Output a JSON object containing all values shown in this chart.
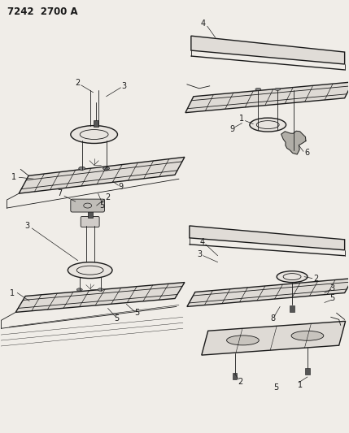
{
  "title": "7242  2700 A",
  "bg_color": "#f0ede8",
  "line_color": "#1a1a1a",
  "label_fontsize": 7,
  "fig_width": 4.29,
  "fig_height": 5.33,
  "dpi": 100
}
